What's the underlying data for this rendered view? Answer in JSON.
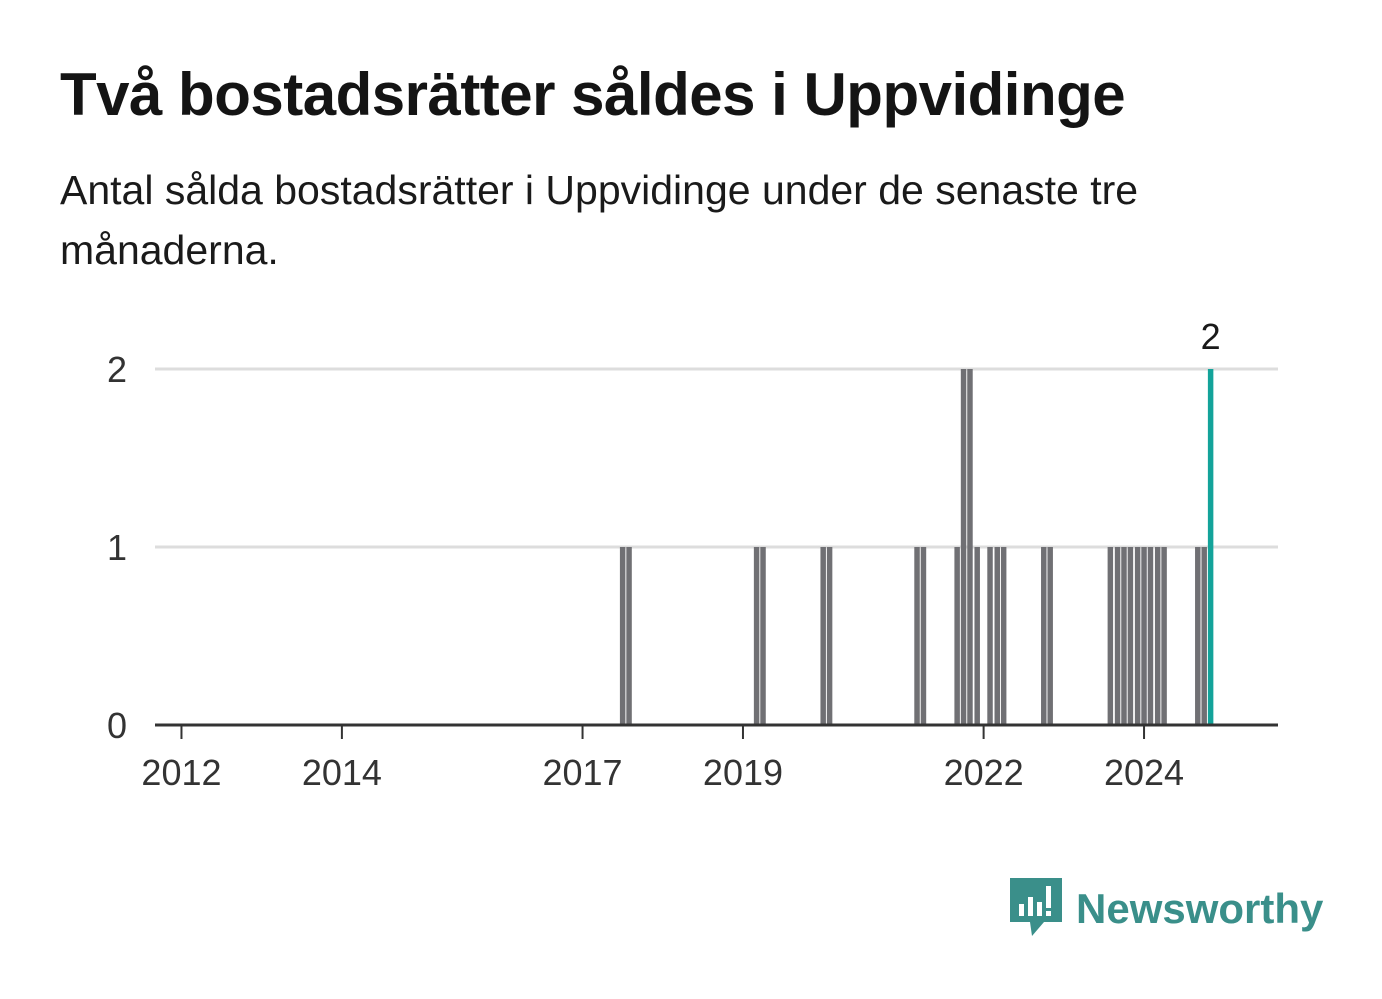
{
  "header": {
    "title": "Två bostadsrätter såldes i Uppvidinge",
    "subtitle": "Antal sålda bostadsrätter i Uppvidinge under de senaste tre månaderna."
  },
  "brand": {
    "name": "Newsworthy",
    "color": "#3a8f8a",
    "icon": "newsworthy-logo-icon"
  },
  "colors": {
    "bar": "#707074",
    "highlight": "#13a39a",
    "grid": "#dddddd",
    "axis": "#333333"
  },
  "chart_data": {
    "type": "bar",
    "title": "Två bostadsrätter såldes i Uppvidinge",
    "subtitle": "Antal sålda bostadsrätter i Uppvidinge under de senaste tre månaderna.",
    "xlabel": "",
    "ylabel": "",
    "x_unit": "year",
    "xlim": [
      2011.67,
      2025.67
    ],
    "ylim": [
      0,
      2
    ],
    "y_ticks": [
      0,
      1,
      2
    ],
    "x_ticks": [
      2012,
      2014,
      2017,
      2019,
      2022,
      2024
    ],
    "grid": true,
    "legend": "none",
    "highlight_label": "2",
    "series": [
      {
        "x": [
          2017.5,
          2017.58,
          2019.17,
          2019.25,
          2020.0,
          2020.08,
          2021.17,
          2021.25,
          2021.67,
          2021.75,
          2021.83,
          2021.92,
          2022.08,
          2022.17,
          2022.25,
          2022.75,
          2022.83,
          2023.58,
          2023.67,
          2023.75,
          2023.83,
          2023.92,
          2024.0,
          2024.08,
          2024.17,
          2024.25,
          2024.67,
          2024.75
        ],
        "values": [
          1,
          1,
          1,
          1,
          1,
          1,
          1,
          1,
          1,
          2,
          2,
          1,
          1,
          1,
          1,
          1,
          1,
          1,
          1,
          1,
          1,
          1,
          1,
          1,
          1,
          1,
          1,
          1
        ]
      }
    ],
    "highlight": {
      "x": 2024.83,
      "value": 2
    }
  }
}
